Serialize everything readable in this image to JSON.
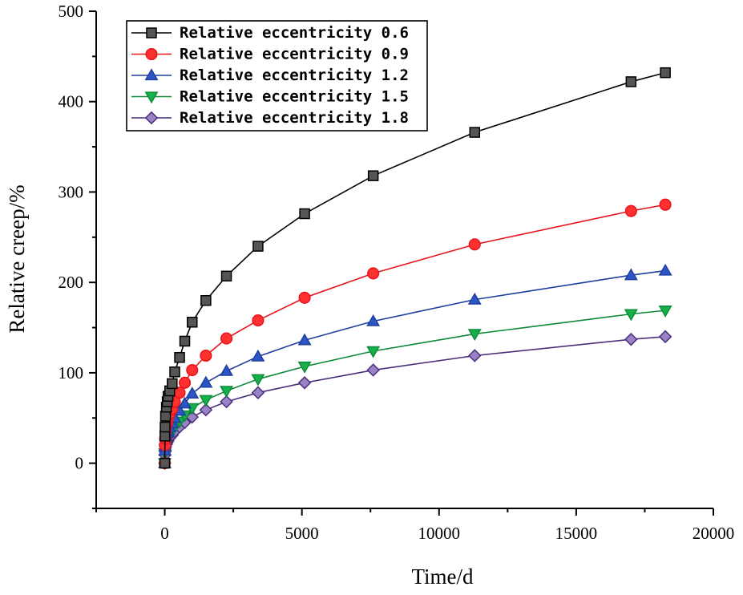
{
  "chart_data": {
    "type": "line",
    "title": "",
    "xlabel": "Time/d",
    "ylabel": "Relative creep/%",
    "xlim": [
      -2500,
      20000
    ],
    "ylim": [
      -50,
      500
    ],
    "xticks": [
      0,
      5000,
      10000,
      15000,
      20000
    ],
    "yticks": [
      0,
      100,
      200,
      300,
      400,
      500
    ],
    "xtick_labels": [
      "0",
      "5000",
      "10000",
      "15000",
      "20000"
    ],
    "ytick_labels": [
      "0",
      "100",
      "200",
      "300",
      "400",
      "500"
    ],
    "grid": false,
    "legend_position": "top-left",
    "series": [
      {
        "name": "Relative eccentricity 0.6",
        "color": "#000000",
        "fill": "#555555",
        "marker": "square",
        "x": [
          0,
          7,
          14,
          28,
          60,
          90,
          120,
          180,
          270,
          365,
          540,
          730,
          1000,
          1500,
          2250,
          3400,
          5100,
          7600,
          11300,
          17000,
          18250
        ],
        "y": [
          0,
          30,
          40,
          52,
          62,
          68,
          74,
          80,
          88,
          101,
          117,
          135,
          156,
          180,
          207,
          240,
          276,
          318,
          366,
          422,
          432
        ]
      },
      {
        "name": "Relative eccentricity 0.9",
        "color": "#e8141c",
        "fill": "#ff3030",
        "marker": "circle",
        "x": [
          0,
          7,
          14,
          28,
          60,
          90,
          120,
          180,
          270,
          365,
          540,
          730,
          1000,
          1500,
          2250,
          3400,
          5100,
          7600,
          11300,
          17000,
          18250
        ],
        "y": [
          0,
          20,
          27,
          35,
          42,
          46,
          50,
          55,
          60,
          68,
          78,
          89,
          103,
          119,
          138,
          158,
          183,
          210,
          242,
          279,
          286
        ]
      },
      {
        "name": "Relative eccentricity 1.2",
        "color": "#1f3e9e",
        "fill": "#2a56c6",
        "marker": "triangle-up",
        "x": [
          0,
          7,
          14,
          28,
          60,
          90,
          120,
          180,
          270,
          365,
          540,
          730,
          1000,
          1500,
          2250,
          3400,
          5100,
          7600,
          11300,
          17000,
          18250
        ],
        "y": [
          0,
          14,
          19,
          25,
          30,
          33,
          36,
          40,
          44,
          50,
          58,
          66,
          77,
          89,
          102,
          118,
          136,
          157,
          181,
          208,
          213
        ]
      },
      {
        "name": "Relative eccentricity 1.5",
        "color": "#0d8a3a",
        "fill": "#17b14a",
        "marker": "triangle-down",
        "x": [
          0,
          7,
          14,
          28,
          60,
          90,
          120,
          180,
          270,
          365,
          540,
          730,
          1000,
          1500,
          2250,
          3400,
          5100,
          7600,
          11300,
          17000,
          18250
        ],
        "y": [
          0,
          11,
          16,
          21,
          25,
          27,
          29,
          32,
          35,
          40,
          46,
          53,
          61,
          70,
          80,
          93,
          107,
          124,
          143,
          165,
          169
        ]
      },
      {
        "name": "Relative eccentricity 1.8",
        "color": "#4b2f7a",
        "fill": "#9a82c6",
        "marker": "diamond",
        "x": [
          0,
          7,
          14,
          28,
          60,
          90,
          120,
          180,
          270,
          365,
          540,
          730,
          1000,
          1500,
          2250,
          3400,
          5100,
          7600,
          11300,
          17000,
          18250
        ],
        "y": [
          0,
          9,
          13,
          18,
          21,
          23,
          25,
          28,
          31,
          35,
          40,
          45,
          51,
          59,
          68,
          78,
          89,
          103,
          119,
          137,
          140
        ]
      }
    ]
  }
}
